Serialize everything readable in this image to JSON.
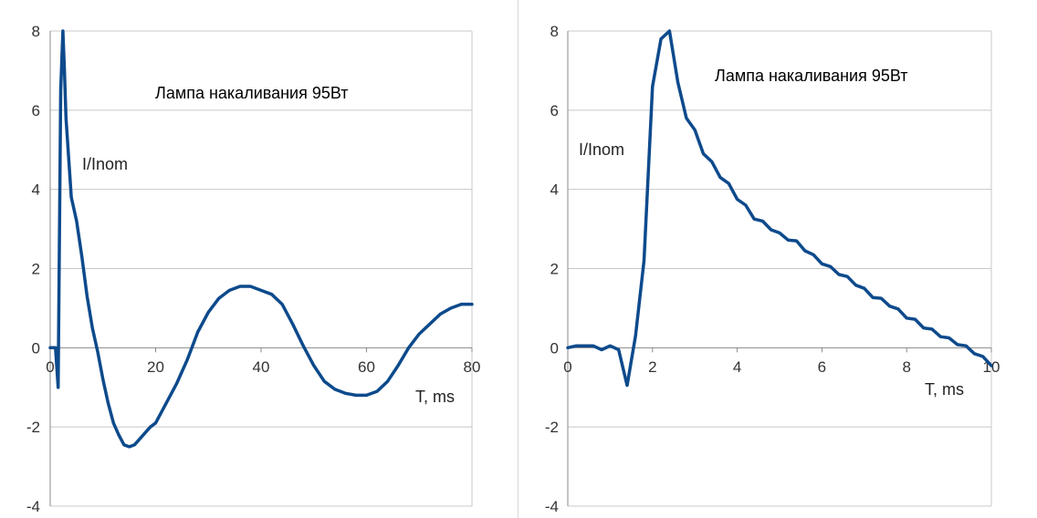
{
  "chart_data": [
    {
      "type": "line",
      "title": "Лампа накаливания 95Вт",
      "xlabel": "T, ms",
      "ylabel": "I/Inom",
      "xlim": [
        0,
        80
      ],
      "ylim": [
        -4,
        8
      ],
      "x_ticks": [
        "0",
        "20",
        "40",
        "60",
        "80"
      ],
      "y_ticks": [
        "-4",
        "-2",
        "0",
        "2",
        "4",
        "6",
        "8"
      ],
      "grid": true,
      "line_color": "#0d4a8c",
      "series": [
        {
          "x": [
            0,
            1.0,
            1.5,
            2.0,
            2.4,
            2.7,
            3.0,
            3.5,
            4.0,
            5.0,
            6.0,
            7.0,
            8.0,
            9.0,
            10.0,
            11.0,
            12.0,
            13.0,
            14.0,
            15.0,
            16.0,
            17.0,
            18.0,
            19.0,
            20.0,
            22.0,
            24.0,
            26.0,
            28.0,
            30.0,
            32.0,
            34.0,
            36.0,
            38.0,
            40.0,
            42.0,
            44.0,
            46.0,
            48.0,
            50.0,
            52.0,
            54.0,
            56.0,
            58.0,
            60.0,
            62.0,
            64.0,
            66.0,
            68.0,
            70.0,
            72.0,
            74.0,
            76.0,
            78.0,
            80.0
          ],
          "y": [
            0,
            0,
            -1.0,
            6.5,
            8.0,
            7.0,
            5.8,
            4.8,
            3.8,
            3.2,
            2.3,
            1.3,
            0.5,
            -0.1,
            -0.8,
            -1.4,
            -1.9,
            -2.2,
            -2.45,
            -2.5,
            -2.45,
            -2.3,
            -2.15,
            -2.0,
            -1.9,
            -1.4,
            -0.9,
            -0.3,
            0.4,
            0.9,
            1.25,
            1.45,
            1.55,
            1.55,
            1.45,
            1.35,
            1.1,
            0.6,
            0.05,
            -0.45,
            -0.85,
            -1.05,
            -1.15,
            -1.2,
            -1.2,
            -1.1,
            -0.85,
            -0.45,
            0.0,
            0.35,
            0.6,
            0.85,
            1.0,
            1.1,
            1.1
          ]
        }
      ]
    },
    {
      "type": "line",
      "title": "Лампа накаливания 95Вт",
      "xlabel": "T, ms",
      "ylabel": "I/Inom",
      "xlim": [
        0,
        10
      ],
      "ylim": [
        -4,
        8
      ],
      "x_ticks": [
        "0",
        "2",
        "4",
        "6",
        "8",
        "10"
      ],
      "y_ticks": [
        "-4",
        "-2",
        "0",
        "2",
        "4",
        "6",
        "8"
      ],
      "grid": true,
      "line_color": "#0d4a8c",
      "series": [
        {
          "x": [
            0,
            0.2,
            0.4,
            0.6,
            0.8,
            1.0,
            1.2,
            1.4,
            1.6,
            1.8,
            2.0,
            2.2,
            2.4,
            2.6,
            2.8,
            3.0,
            3.2,
            3.4,
            3.6,
            3.8,
            4.0,
            4.2,
            4.4,
            4.6,
            4.8,
            5.0,
            5.2,
            5.4,
            5.6,
            5.8,
            6.0,
            6.2,
            6.4,
            6.6,
            6.8,
            7.0,
            7.2,
            7.4,
            7.6,
            7.8,
            8.0,
            8.2,
            8.4,
            8.6,
            8.8,
            9.0,
            9.2,
            9.4,
            9.6,
            9.8,
            10.0
          ],
          "y": [
            0,
            0.05,
            0.05,
            0.05,
            -0.05,
            0.05,
            -0.05,
            -0.95,
            0.3,
            2.2,
            6.6,
            7.8,
            8.0,
            6.7,
            5.8,
            5.5,
            4.9,
            4.7,
            4.3,
            4.15,
            3.75,
            3.6,
            3.25,
            3.2,
            2.98,
            2.9,
            2.72,
            2.7,
            2.45,
            2.35,
            2.12,
            2.05,
            1.85,
            1.8,
            1.58,
            1.5,
            1.27,
            1.25,
            1.05,
            0.98,
            0.75,
            0.72,
            0.5,
            0.47,
            0.28,
            0.25,
            0.08,
            0.05,
            -0.15,
            -0.22,
            -0.45
          ]
        }
      ]
    }
  ]
}
